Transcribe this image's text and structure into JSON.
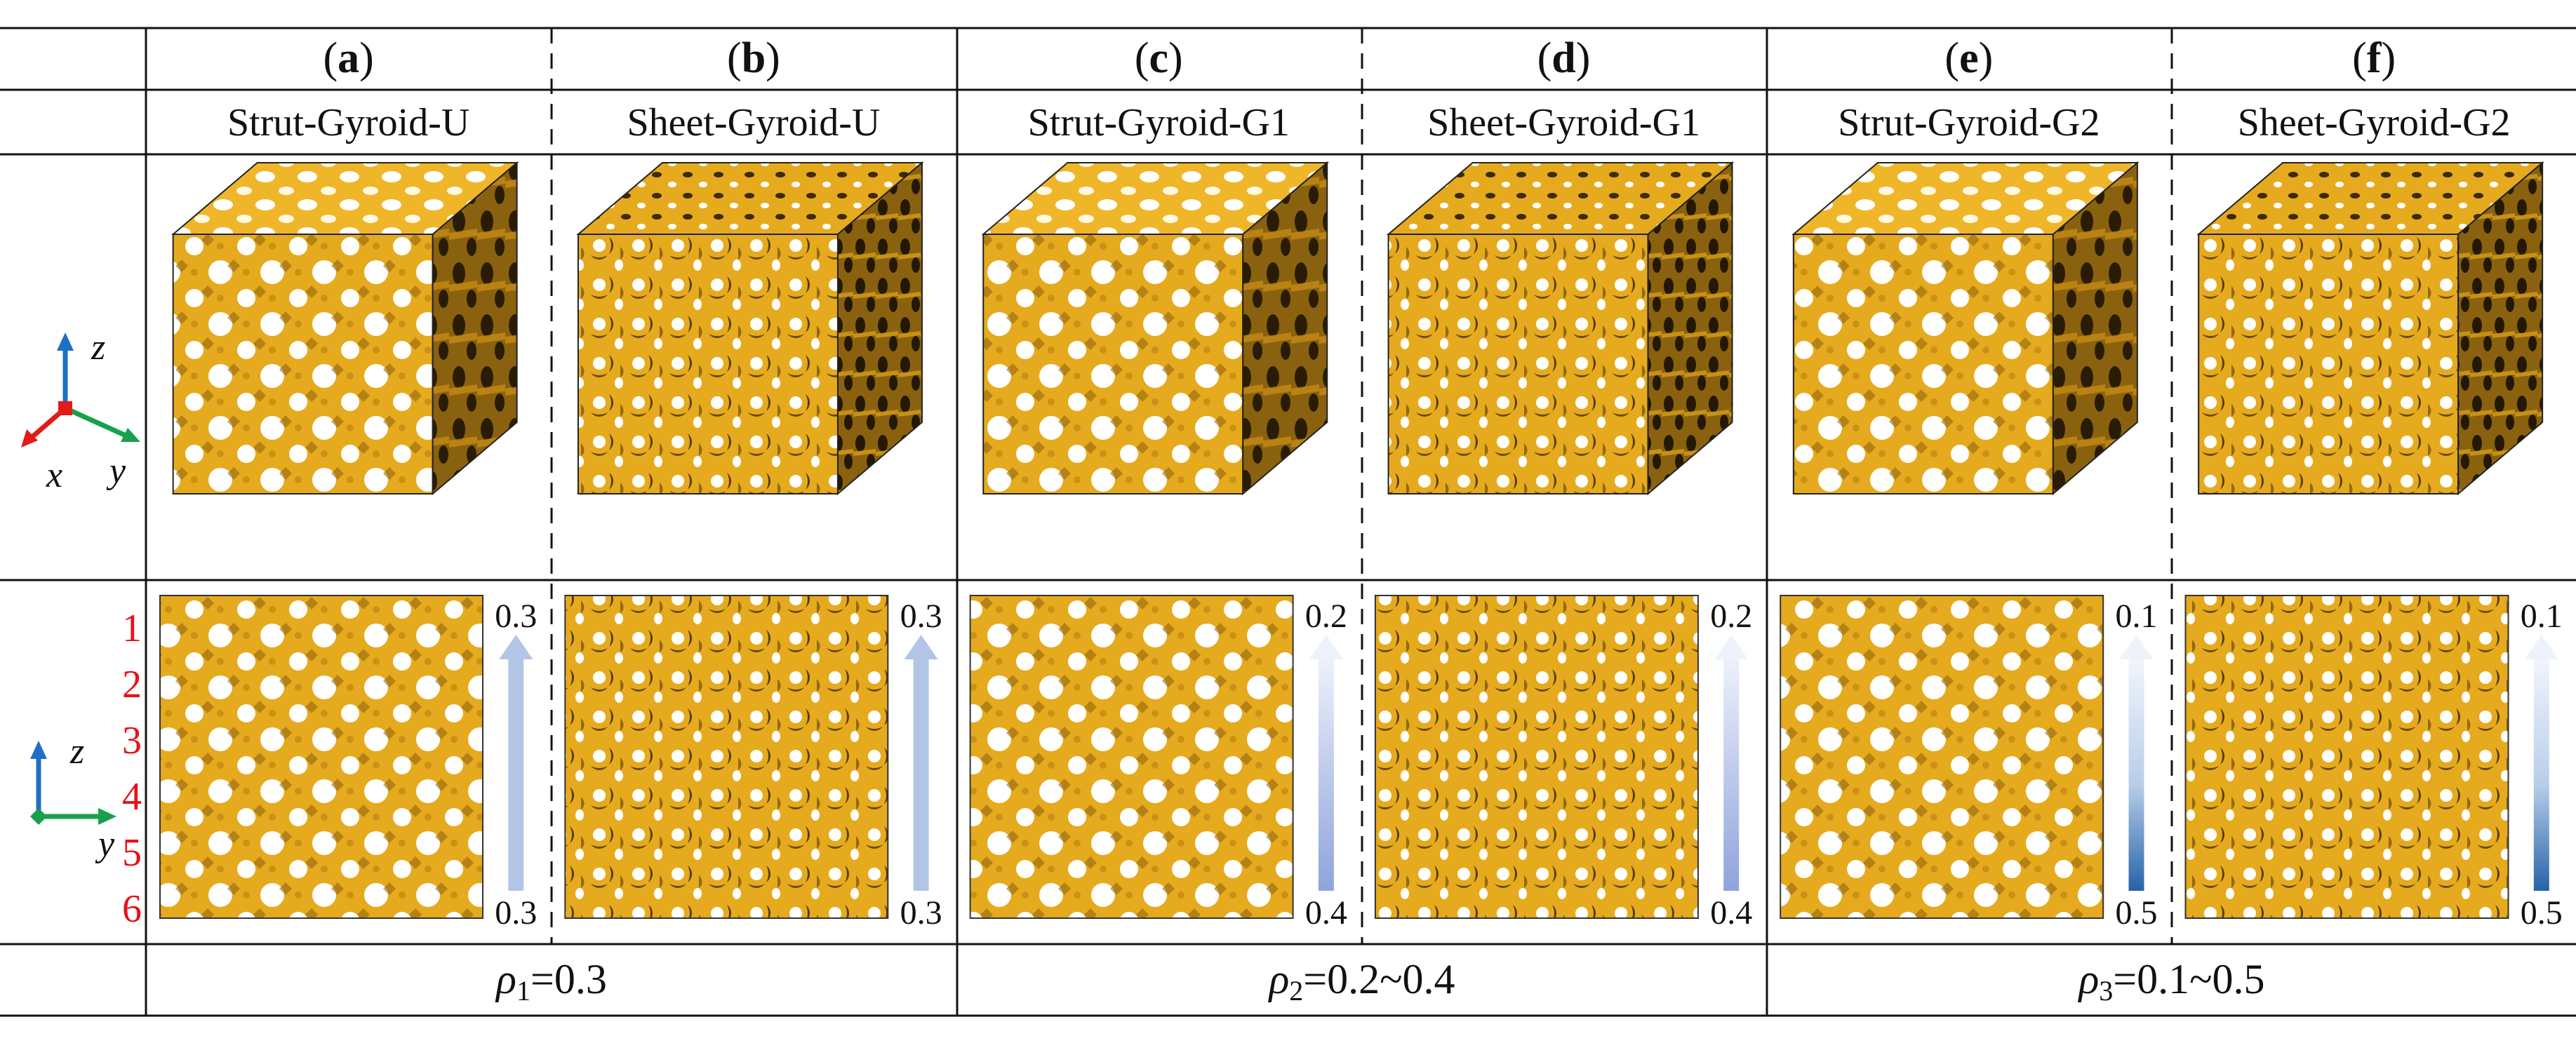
{
  "panels": [
    {
      "label": "a",
      "name": "Strut-Gyroid-U",
      "type": "strut",
      "scale_top": "0.3",
      "scale_bottom": "0.3",
      "gradient": "uniform"
    },
    {
      "label": "b",
      "name": "Sheet-Gyroid-U",
      "type": "sheet",
      "scale_top": "0.3",
      "scale_bottom": "0.3",
      "gradient": "uniform"
    },
    {
      "label": "c",
      "name": "Strut-Gyroid-G1",
      "type": "strut",
      "scale_top": "0.2",
      "scale_bottom": "0.4",
      "gradient": "g1"
    },
    {
      "label": "d",
      "name": "Sheet-Gyroid-G1",
      "type": "sheet",
      "scale_top": "0.2",
      "scale_bottom": "0.4",
      "gradient": "g1"
    },
    {
      "label": "e",
      "name": "Strut-Gyroid-G2",
      "type": "strut",
      "scale_top": "0.1",
      "scale_bottom": "0.5",
      "gradient": "g2"
    },
    {
      "label": "f",
      "name": "Sheet-Gyroid-G2",
      "type": "sheet",
      "scale_top": "0.1",
      "scale_bottom": "0.5",
      "gradient": "g2"
    }
  ],
  "row_numbers": [
    "1",
    "2",
    "3",
    "4",
    "5",
    "6"
  ],
  "axes_3d": {
    "z": "z",
    "x": "x",
    "y": "y"
  },
  "axes_2d": {
    "z": "z",
    "y": "y"
  },
  "density_groups": [
    {
      "symbol": "ρ",
      "subscript": "1",
      "value": "=0.3"
    },
    {
      "symbol": "ρ",
      "subscript": "2",
      "value": "=0.2~0.4"
    },
    {
      "symbol": "ρ",
      "subscript": "3",
      "value": "=0.1~0.5"
    }
  ],
  "colors": {
    "lattice": "#e6aa1e",
    "lattice_dark": "#3d2a06",
    "row_number": "#e8101a",
    "axis_z": "#1f6fc4",
    "axis_x": "#e21a1a",
    "axis_y": "#18a14b",
    "arrow_light": "#eef2fb",
    "arrow_uniform": "#b3c5e6",
    "arrow_mid": "#8fa3dc",
    "arrow_dark": "#2563a8"
  }
}
